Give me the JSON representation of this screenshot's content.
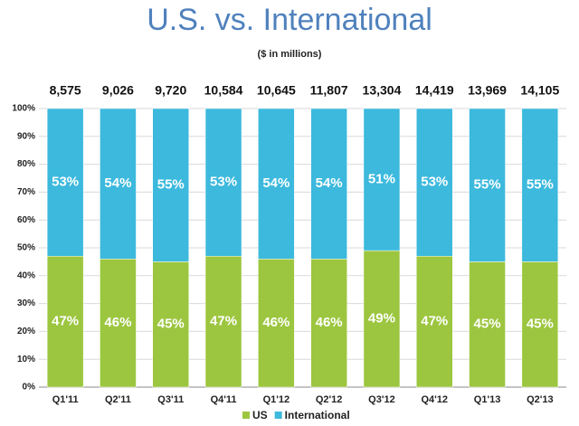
{
  "chart_data": {
    "type": "stacked_bar_100",
    "title": "U.S. vs. International",
    "subtitle": "($ in millions)",
    "categories": [
      "Q1'11",
      "Q2'11",
      "Q3'11",
      "Q4'11",
      "Q1'12",
      "Q2'12",
      "Q3'12",
      "Q4'12",
      "Q1'13",
      "Q2'13"
    ],
    "totals": [
      8575,
      9026,
      9720,
      10584,
      10645,
      11807,
      13304,
      14419,
      13969,
      14105
    ],
    "total_labels": [
      "8,575",
      "9,026",
      "9,720",
      "10,584",
      "10,645",
      "11,807",
      "13,304",
      "14,419",
      "13,969",
      "14,105"
    ],
    "series": [
      {
        "name": "US",
        "color": "#9cc63f",
        "values": [
          47,
          46,
          45,
          47,
          46,
          46,
          49,
          47,
          45,
          45
        ],
        "value_labels": [
          "47%",
          "46%",
          "45%",
          "47%",
          "46%",
          "46%",
          "49%",
          "47%",
          "45%",
          "45%"
        ]
      },
      {
        "name": "International",
        "color": "#3cb9dd",
        "values": [
          53,
          54,
          55,
          53,
          54,
          54,
          51,
          53,
          55,
          55
        ],
        "value_labels": [
          "53%",
          "54%",
          "55%",
          "53%",
          "54%",
          "54%",
          "51%",
          "53%",
          "55%",
          "55%"
        ]
      }
    ],
    "ylim": [
      0,
      100
    ],
    "yticks": [
      {
        "value": 0,
        "label": "0%"
      },
      {
        "value": 10,
        "label": "10%"
      },
      {
        "value": 20,
        "label": "20%"
      },
      {
        "value": 30,
        "label": "30%"
      },
      {
        "value": 40,
        "label": "40%"
      },
      {
        "value": 50,
        "label": "50%"
      },
      {
        "value": 60,
        "label": "60%"
      },
      {
        "value": 70,
        "label": "70%"
      },
      {
        "value": 80,
        "label": "80%"
      },
      {
        "value": 90,
        "label": "90%"
      },
      {
        "value": 100,
        "label": "100%"
      }
    ],
    "grid": true,
    "legend": "bottom"
  }
}
